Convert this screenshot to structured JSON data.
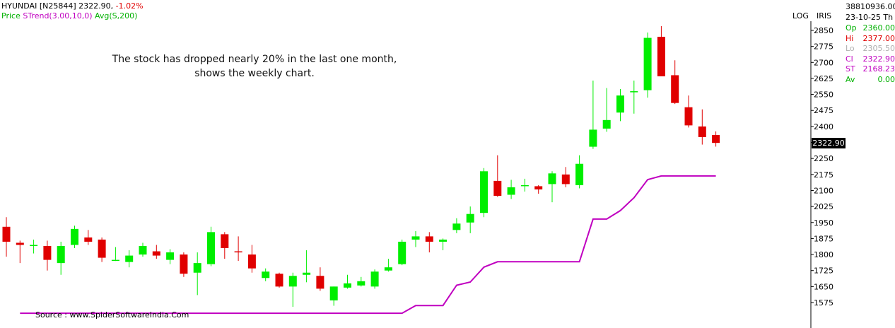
{
  "header": {
    "symbol": "HYUNDAI [N25844]",
    "last": "2322.90",
    "change": "-1.02%",
    "legend_price": "Price",
    "legend_strend": "STrend(3.00,10,0)",
    "legend_avg": "Avg(S,200)"
  },
  "annotation_line1": "The stock has dropped nearly 20% in the last one month,",
  "annotation_line2": "shows the weekly chart.",
  "source": "Source : www.SpiderSoftwareIndia.Com",
  "axis_toggles": {
    "log": "LOG",
    "iris": "IRIS"
  },
  "info_panel": {
    "volume": "38810936.00",
    "date": "23-10-25 Th",
    "rows": [
      {
        "key": "Op",
        "value": "2360.00",
        "color": "#00b000"
      },
      {
        "key": "Hi",
        "value": "2377.00",
        "color": "#e00000"
      },
      {
        "key": "Lo",
        "value": "2305.50",
        "color": "#b0b0b0"
      },
      {
        "key": "Cl",
        "value": "2322.90",
        "color": "#c000c0"
      },
      {
        "key": "ST",
        "value": "2168.23",
        "color": "#c000c0"
      },
      {
        "key": "Av",
        "value": "0.00",
        "color": "#00b000"
      }
    ]
  },
  "current_price_label": "2322.90",
  "colors": {
    "up": "#00ee00",
    "down": "#e00000",
    "strend": "#c000c0"
  },
  "chart_data": {
    "type": "candlestick",
    "ylim": [
      1525,
      2885
    ],
    "yticks": [
      1575,
      1650,
      1725,
      1800,
      1875,
      1950,
      2025,
      2100,
      2175,
      2250,
      2325,
      2400,
      2475,
      2550,
      2625,
      2700,
      2775,
      2850
    ],
    "candles": [
      {
        "o": 1930,
        "h": 1975,
        "l": 1790,
        "c": 1860
      },
      {
        "o": 1855,
        "h": 1865,
        "l": 1760,
        "c": 1845
      },
      {
        "o": 1845,
        "h": 1870,
        "l": 1805,
        "c": 1845
      },
      {
        "o": 1840,
        "h": 1865,
        "l": 1725,
        "c": 1775
      },
      {
        "o": 1760,
        "h": 1860,
        "l": 1705,
        "c": 1840
      },
      {
        "o": 1845,
        "h": 1935,
        "l": 1830,
        "c": 1920
      },
      {
        "o": 1880,
        "h": 1915,
        "l": 1845,
        "c": 1860
      },
      {
        "o": 1870,
        "h": 1880,
        "l": 1765,
        "c": 1785
      },
      {
        "o": 1775,
        "h": 1835,
        "l": 1770,
        "c": 1775
      },
      {
        "o": 1765,
        "h": 1820,
        "l": 1740,
        "c": 1795
      },
      {
        "o": 1800,
        "h": 1855,
        "l": 1790,
        "c": 1840
      },
      {
        "o": 1815,
        "h": 1845,
        "l": 1780,
        "c": 1795
      },
      {
        "o": 1775,
        "h": 1825,
        "l": 1755,
        "c": 1810
      },
      {
        "o": 1800,
        "h": 1810,
        "l": 1695,
        "c": 1710
      },
      {
        "o": 1715,
        "h": 1810,
        "l": 1610,
        "c": 1760
      },
      {
        "o": 1755,
        "h": 1930,
        "l": 1745,
        "c": 1905
      },
      {
        "o": 1895,
        "h": 1905,
        "l": 1780,
        "c": 1830
      },
      {
        "o": 1815,
        "h": 1885,
        "l": 1770,
        "c": 1810
      },
      {
        "o": 1800,
        "h": 1845,
        "l": 1715,
        "c": 1735
      },
      {
        "o": 1690,
        "h": 1735,
        "l": 1675,
        "c": 1720
      },
      {
        "o": 1710,
        "h": 1715,
        "l": 1645,
        "c": 1650
      },
      {
        "o": 1650,
        "h": 1715,
        "l": 1555,
        "c": 1700
      },
      {
        "o": 1705,
        "h": 1820,
        "l": 1670,
        "c": 1715
      },
      {
        "o": 1700,
        "h": 1740,
        "l": 1630,
        "c": 1640
      },
      {
        "o": 1585,
        "h": 1650,
        "l": 1560,
        "c": 1650
      },
      {
        "o": 1645,
        "h": 1705,
        "l": 1640,
        "c": 1665
      },
      {
        "o": 1655,
        "h": 1695,
        "l": 1650,
        "c": 1675
      },
      {
        "o": 1650,
        "h": 1730,
        "l": 1640,
        "c": 1720
      },
      {
        "o": 1725,
        "h": 1780,
        "l": 1720,
        "c": 1740
      },
      {
        "o": 1755,
        "h": 1870,
        "l": 1750,
        "c": 1860
      },
      {
        "o": 1870,
        "h": 1910,
        "l": 1835,
        "c": 1885
      },
      {
        "o": 1885,
        "h": 1905,
        "l": 1810,
        "c": 1860
      },
      {
        "o": 1860,
        "h": 1875,
        "l": 1820,
        "c": 1870
      },
      {
        "o": 1915,
        "h": 1970,
        "l": 1900,
        "c": 1945
      },
      {
        "o": 1950,
        "h": 2025,
        "l": 1900,
        "c": 1990
      },
      {
        "o": 1995,
        "h": 2205,
        "l": 1975,
        "c": 2190
      },
      {
        "o": 2145,
        "h": 2265,
        "l": 2070,
        "c": 2075
      },
      {
        "o": 2080,
        "h": 2150,
        "l": 2060,
        "c": 2115
      },
      {
        "o": 2125,
        "h": 2155,
        "l": 2095,
        "c": 2125
      },
      {
        "o": 2120,
        "h": 2125,
        "l": 2085,
        "c": 2105
      },
      {
        "o": 2130,
        "h": 2190,
        "l": 2045,
        "c": 2180
      },
      {
        "o": 2175,
        "h": 2210,
        "l": 2115,
        "c": 2130
      },
      {
        "o": 2125,
        "h": 2265,
        "l": 2110,
        "c": 2225
      },
      {
        "o": 2305,
        "h": 2615,
        "l": 2295,
        "c": 2385
      },
      {
        "o": 2390,
        "h": 2580,
        "l": 2375,
        "c": 2430
      },
      {
        "o": 2465,
        "h": 2575,
        "l": 2425,
        "c": 2545
      },
      {
        "o": 2560,
        "h": 2615,
        "l": 2460,
        "c": 2565
      },
      {
        "o": 2570,
        "h": 2840,
        "l": 2535,
        "c": 2815
      },
      {
        "o": 2820,
        "h": 2870,
        "l": 2640,
        "c": 2635
      },
      {
        "o": 2640,
        "h": 2710,
        "l": 2505,
        "c": 2510
      },
      {
        "o": 2490,
        "h": 2545,
        "l": 2395,
        "c": 2405
      },
      {
        "o": 2400,
        "h": 2480,
        "l": 2315,
        "c": 2350
      },
      {
        "o": 2360,
        "h": 2377,
        "l": 2305.5,
        "c": 2322.9
      }
    ],
    "strend": [
      1525,
      1525,
      1525,
      1525,
      1525,
      1525,
      1525,
      1525,
      1525,
      1525,
      1525,
      1525,
      1525,
      1525,
      1525,
      1525,
      1525,
      1525,
      1525,
      1525,
      1525,
      1525,
      1525,
      1525,
      1525,
      1525,
      1525,
      1525,
      1525,
      1525,
      1561,
      1561,
      1561,
      1656,
      1671,
      1741,
      1766,
      1766,
      1766,
      1766,
      1766,
      1766,
      1766,
      1966,
      1966,
      2006,
      2066,
      2151,
      2168.23,
      2168.23,
      2168.23,
      2168.23,
      2168.23
    ]
  }
}
